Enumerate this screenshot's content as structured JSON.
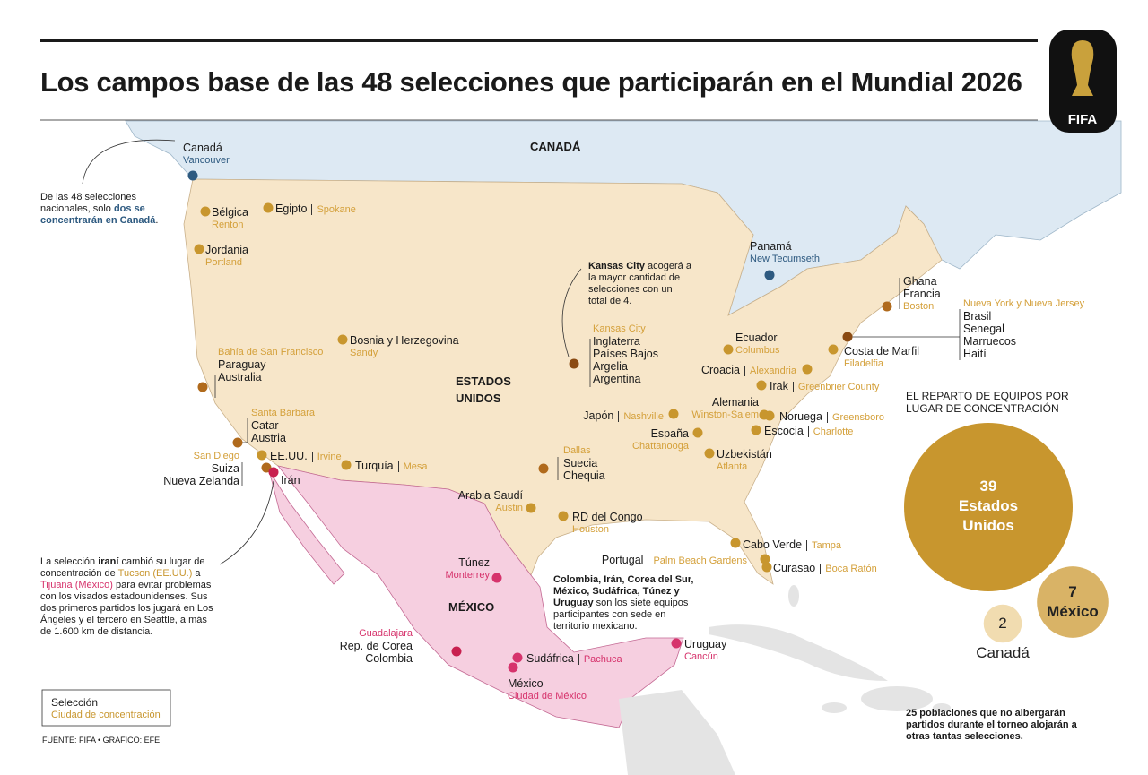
{
  "header": {
    "title": "Los campos base de las 48 selecciones que participarán en el Mundial 2026",
    "logo_text": "FIFA"
  },
  "regions": {
    "canada": "CANADÁ",
    "usa": "ESTADOS UNIDOS",
    "mexico": "MÉXICO"
  },
  "sites": [
    {
      "teams": [
        "Canadá"
      ],
      "city": "Vancouver",
      "color": "#2e5a80"
    },
    {
      "teams": [
        "Panamá"
      ],
      "city": "New Tecumseth",
      "color": "#2e5a80"
    },
    {
      "teams": [
        "Bélgica"
      ],
      "city": "Renton",
      "color": "#c8962e"
    },
    {
      "teams": [
        "Egipto"
      ],
      "city": "Spokane",
      "color": "#c8962e"
    },
    {
      "teams": [
        "Jordania"
      ],
      "city": "Portland",
      "color": "#c8962e"
    },
    {
      "teams": [
        "Bosnia y Herzegovina"
      ],
      "city": "Sandy",
      "color": "#c8962e"
    },
    {
      "teams": [
        "Paraguay",
        "Australia"
      ],
      "city": "Bahía de San Francisco",
      "color": "#b06a1c"
    },
    {
      "teams": [
        "Catar",
        "Austria"
      ],
      "city": "Santa Bárbara",
      "color": "#b06a1c"
    },
    {
      "teams": [
        "Suiza",
        "Nueva Zelanda"
      ],
      "city": "San Diego",
      "color": "#b06a1c"
    },
    {
      "teams": [
        "EE.UU."
      ],
      "city": "Irvine",
      "color": "#c8962e"
    },
    {
      "teams": [
        "Irán"
      ],
      "color": "#c8204f"
    },
    {
      "teams": [
        "Turquía"
      ],
      "city": "Mesa",
      "color": "#c8962e"
    },
    {
      "teams": [
        "Inglaterra",
        "Países Bajos",
        "Argelia",
        "Argentina"
      ],
      "city": "Kansas City",
      "color": "#8a4a12"
    },
    {
      "teams": [
        "Suecia",
        "Chequia"
      ],
      "city": "Dallas",
      "color": "#b06a1c"
    },
    {
      "teams": [
        "Arabia Saudí"
      ],
      "city": "Austin",
      "color": "#c8962e"
    },
    {
      "teams": [
        "RD del Congo"
      ],
      "city": "Houston",
      "color": "#c8962e"
    },
    {
      "teams": [
        "Japón"
      ],
      "city": "Nashville",
      "color": "#c8962e"
    },
    {
      "teams": [
        "España"
      ],
      "city": "Chattanooga",
      "color": "#c8962e"
    },
    {
      "teams": [
        "Uzbekistán"
      ],
      "city": "Atlanta",
      "color": "#c8962e"
    },
    {
      "teams": [
        "Alemania"
      ],
      "city": "Winston-Salem",
      "color": "#c8962e"
    },
    {
      "teams": [
        "Noruega"
      ],
      "city": "Greensboro",
      "color": "#c8962e"
    },
    {
      "teams": [
        "Escocia"
      ],
      "city": "Charlotte",
      "color": "#c8962e"
    },
    {
      "teams": [
        "Irak"
      ],
      "city": "Greenbrier County",
      "color": "#c8962e"
    },
    {
      "teams": [
        "Croacia"
      ],
      "city": "Alexandria",
      "color": "#c8962e"
    },
    {
      "teams": [
        "Ecuador"
      ],
      "city": "Columbus",
      "color": "#c8962e"
    },
    {
      "teams": [
        "Costa de Marfil"
      ],
      "city": "Filadelfia",
      "color": "#c8962e"
    },
    {
      "teams": [
        "Brasil",
        "Senegal",
        "Marruecos",
        "Haití"
      ],
      "city": "Nueva York  y Nueva Jersey",
      "color": "#8a4a12"
    },
    {
      "teams": [
        "Ghana",
        "Francia"
      ],
      "city": "Boston",
      "color": "#b06a1c"
    },
    {
      "teams": [
        "Cabo Verde"
      ],
      "city": "Tampa",
      "color": "#c8962e"
    },
    {
      "teams": [
        "Portugal"
      ],
      "city": "Palm Beach Gardens",
      "color": "#c8962e"
    },
    {
      "teams": [
        "Curasao"
      ],
      "city": "Boca Ratón",
      "color": "#c8962e"
    },
    {
      "teams": [
        "Túnez"
      ],
      "city": "Monterrey",
      "color": "#d6336c"
    },
    {
      "teams": [
        "Rep. de Corea",
        "Colombia"
      ],
      "city": "Guadalajara",
      "color": "#c8204f"
    },
    {
      "teams": [
        "Sudáfrica"
      ],
      "city": "Pachuca",
      "color": "#d6336c"
    },
    {
      "teams": [
        "México"
      ],
      "city": "Ciudad de México",
      "color": "#d6336c"
    },
    {
      "teams": [
        "Uruguay"
      ],
      "city": "Cancún",
      "color": "#d6336c"
    }
  ],
  "notes": {
    "canada": [
      {
        "text": "De las 48 selecciones nacionales, solo "
      },
      {
        "text": "dos se concentrarán en Canadá",
        "style": "canada"
      },
      {
        "text": "."
      }
    ],
    "kansas": [
      {
        "text": "Kansas City",
        "style": "bold"
      },
      {
        "text": " acogerá a la mayor cantidad de selecciones con un total de 4."
      }
    ],
    "iran": [
      {
        "text": "La selección "
      },
      {
        "text": "iraní",
        "style": "bold"
      },
      {
        "text": " cambió su lugar de concentración de "
      },
      {
        "text": "Tucson (EE.UU.)",
        "style": "us"
      },
      {
        "text": " a "
      },
      {
        "text": "Tijuana (México)",
        "style": "mx"
      },
      {
        "text": " para evitar problemas con los visados estadounidenses. Sus dos primeros partidos los jugará en Los Ángeles y el tercero en Seattle, a más de 1.600 km de distancia."
      }
    ],
    "mexico": [
      {
        "text": "Colombia, Irán, Corea del Sur, México, Sudáfrica, Túnez y Uruguay",
        "style": "bold"
      },
      {
        "text": " son los siete equipos participantes con sede en territorio mexicano."
      }
    ]
  },
  "summary": {
    "title": "EL REPARTO DE EQUIPOS POR LUGAR DE CONCENTRACIÓN",
    "bubbles": [
      {
        "value": 39,
        "name": "Estados Unidos",
        "color": "#c8962e"
      },
      {
        "value": 7,
        "name": "México",
        "color": "#d9b366"
      },
      {
        "value": 2,
        "name": "Canadá",
        "color": "#f1dcb0"
      }
    ],
    "note": "25 poblaciones que no albergarán partidos durante el torneo alojarán a otras tantas selecciones."
  },
  "legend": {
    "team": "Selección",
    "city": "Ciudad de concentración"
  },
  "source": "FUENTE: FIFA • GRÁFICO: EFE"
}
